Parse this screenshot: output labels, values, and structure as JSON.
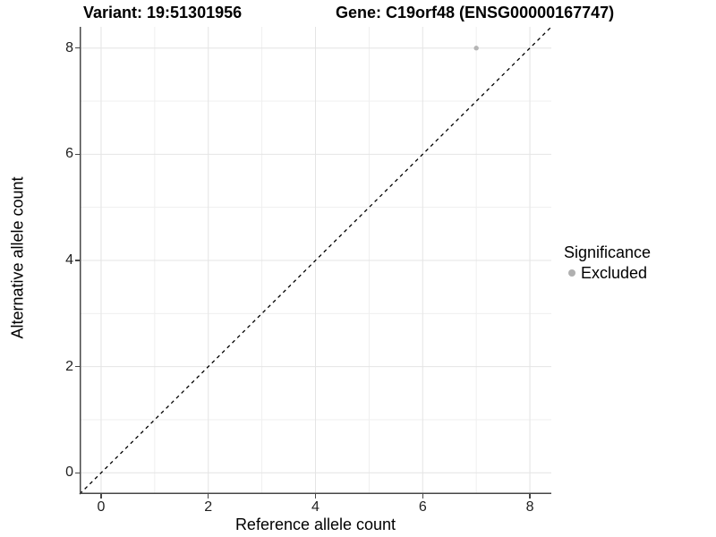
{
  "chart_data": {
    "type": "scatter",
    "titles": {
      "left": "Variant: 19:51301956",
      "right": "Gene: C19orf48 (ENSG00000167747)"
    },
    "xlabel": "Reference allele count",
    "ylabel": "Alternative allele count",
    "xlim": [
      -0.4,
      8.4
    ],
    "ylim": [
      -0.4,
      8.4
    ],
    "x_ticks": [
      0,
      2,
      4,
      6,
      8
    ],
    "y_ticks": [
      0,
      2,
      4,
      6,
      8
    ],
    "grid_major": [
      0,
      2,
      4,
      6,
      8
    ],
    "grid_minor": [
      1,
      3,
      5,
      7
    ],
    "grid": true,
    "points": [
      {
        "x": 7,
        "y": 8,
        "series": "Excluded"
      }
    ],
    "reference_line": {
      "type": "identity",
      "slope": 1,
      "intercept": 0,
      "style": "dashed"
    },
    "legend": {
      "title": "Significance",
      "position": "right",
      "items": [
        {
          "label": "Excluded",
          "color": "#b0b0b0"
        }
      ]
    },
    "colors": {
      "point": "#b5b5b5",
      "legend_dot": "#b0b0b0",
      "grid_major": "#e4e4e4",
      "grid_minor": "#efefef",
      "axis_line": "#474747",
      "reference_line": "#000000",
      "background": "#ffffff"
    }
  }
}
